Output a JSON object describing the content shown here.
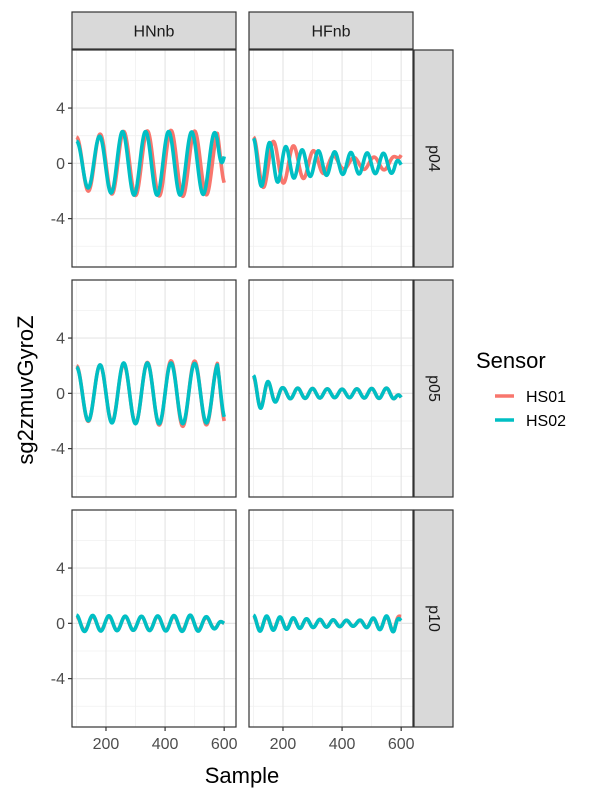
{
  "chart_data": {
    "type": "line",
    "layout": "facet-grid",
    "xlabel": "Sample",
    "ylabel": "sg2zmuvGyroZ",
    "xlim": [
      85,
      640
    ],
    "ylim": [
      -7.5,
      8.2
    ],
    "x_ticks": [
      200,
      400,
      600
    ],
    "y_ticks": [
      -4,
      0,
      4
    ],
    "y_tick_labels": [
      "-4",
      "0",
      "4"
    ],
    "grid": true,
    "columns": [
      "HNnb",
      "HFnb"
    ],
    "rows": [
      "p04",
      "p05",
      "p10"
    ],
    "legend": {
      "title": "Sensor",
      "position": "right",
      "entries": [
        {
          "name": "HS01",
          "color": "#F8766D"
        },
        {
          "name": "HS02",
          "color": "#00BFC4"
        }
      ]
    },
    "x_range": [
      100,
      600
    ],
    "panels": [
      {
        "row": "p04",
        "col": "HNnb",
        "series": [
          {
            "name": "HS01",
            "period": 80,
            "phase": 0.0,
            "amp": [
              [
                100,
                1.9
              ],
              [
                250,
                2.3
              ],
              [
                450,
                2.4
              ],
              [
                600,
                2.2
              ]
            ],
            "end": -1.4
          },
          {
            "name": "HS02",
            "period": 78,
            "phase": 0.0,
            "amp": [
              [
                100,
                1.6
              ],
              [
                250,
                2.3
              ],
              [
                450,
                2.3
              ],
              [
                600,
                2.2
              ]
            ],
            "end": 0.5
          }
        ]
      },
      {
        "row": "p04",
        "col": "HFnb",
        "series": [
          {
            "name": "HS01",
            "period": 68,
            "phase": 0.0,
            "amp": [
              [
                100,
                1.9
              ],
              [
                250,
                1.2
              ],
              [
                400,
                0.4
              ],
              [
                600,
                0.5
              ]
            ],
            "end": 0.6
          },
          {
            "name": "HS02",
            "period": 55,
            "phase": 0.0,
            "amp": [
              [
                100,
                1.8
              ],
              [
                250,
                1.0
              ],
              [
                400,
                0.8
              ],
              [
                600,
                0.7
              ]
            ],
            "end": -0.1
          }
        ]
      },
      {
        "row": "p05",
        "col": "HNnb",
        "series": [
          {
            "name": "HS01",
            "period": 80,
            "phase": 0.0,
            "amp": [
              [
                100,
                2.0
              ],
              [
                250,
                2.1
              ],
              [
                450,
                2.4
              ],
              [
                600,
                2.2
              ]
            ],
            "end": -2.0
          },
          {
            "name": "HS02",
            "period": 80,
            "phase": 0.0,
            "amp": [
              [
                100,
                1.9
              ],
              [
                250,
                2.2
              ],
              [
                450,
                2.2
              ],
              [
                600,
                2.1
              ]
            ],
            "end": -1.7
          }
        ]
      },
      {
        "row": "p05",
        "col": "HFnb",
        "series": [
          {
            "name": "HS01",
            "period": 50,
            "phase": 0.0,
            "amp": [
              [
                100,
                1.2
              ],
              [
                200,
                0.4
              ],
              [
                400,
                0.3
              ],
              [
                600,
                0.4
              ]
            ],
            "end": -0.3
          },
          {
            "name": "HS02",
            "period": 50,
            "phase": 0.0,
            "amp": [
              [
                100,
                1.3
              ],
              [
                200,
                0.4
              ],
              [
                400,
                0.3
              ],
              [
                600,
                0.4
              ]
            ],
            "end": -0.3
          }
        ]
      },
      {
        "row": "p10",
        "col": "HNnb",
        "series": [
          {
            "name": "HS01",
            "period": 55,
            "phase": 0.0,
            "amp": [
              [
                100,
                0.5
              ],
              [
                300,
                0.5
              ],
              [
                500,
                0.5
              ],
              [
                600,
                0.3
              ]
            ],
            "end": 0.0
          },
          {
            "name": "HS02",
            "period": 55,
            "phase": 0.0,
            "amp": [
              [
                100,
                0.6
              ],
              [
                300,
                0.5
              ],
              [
                500,
                0.6
              ],
              [
                600,
                0.3
              ]
            ],
            "end": 0.0
          }
        ]
      },
      {
        "row": "p10",
        "col": "HFnb",
        "series": [
          {
            "name": "HS01",
            "period": 45,
            "phase": 0.0,
            "amp": [
              [
                100,
                0.5
              ],
              [
                300,
                0.3
              ],
              [
                450,
                0.2
              ],
              [
                600,
                0.6
              ]
            ],
            "end": 0.5
          },
          {
            "name": "HS02",
            "period": 45,
            "phase": 0.0,
            "amp": [
              [
                100,
                0.6
              ],
              [
                300,
                0.3
              ],
              [
                450,
                0.2
              ],
              [
                600,
                0.7
              ]
            ],
            "end": 0.2
          }
        ]
      }
    ]
  }
}
